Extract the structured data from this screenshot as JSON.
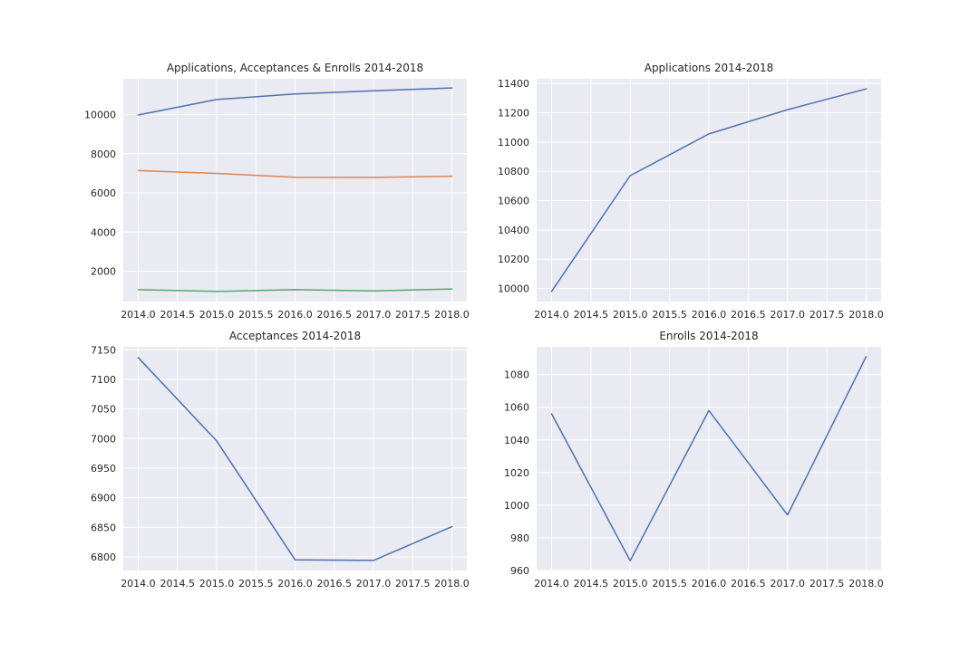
{
  "chart_data": [
    {
      "type": "line",
      "title": "Applications, Acceptances & Enrolls 2014-2018",
      "x": [
        2014,
        2015,
        2016,
        2017,
        2018
      ],
      "xlim": [
        2013.81,
        2018.19
      ],
      "ylim": [
        450,
        11830
      ],
      "xticks": [
        "2014.0",
        "2014.5",
        "2015.0",
        "2015.5",
        "2016.0",
        "2016.5",
        "2017.0",
        "2017.5",
        "2018.0"
      ],
      "yticks": [
        "2000",
        "4000",
        "6000",
        "8000",
        "10000"
      ],
      "grid": true,
      "series": [
        {
          "values": [
            9980,
            10770,
            11055,
            11220,
            11362
          ],
          "color": "#4c72b0"
        },
        {
          "values": [
            7137,
            6996,
            6795,
            6794,
            6851
          ],
          "color": "#dd8452"
        },
        {
          "values": [
            1056,
            966,
            1058,
            994,
            1091
          ],
          "color": "#55a868"
        }
      ]
    },
    {
      "type": "line",
      "title": "Applications 2014-2018",
      "x": [
        2014,
        2015,
        2016,
        2017,
        2018
      ],
      "xlim": [
        2013.81,
        2018.19
      ],
      "ylim": [
        9911,
        11431
      ],
      "xticks": [
        "2014.0",
        "2014.5",
        "2015.0",
        "2015.5",
        "2016.0",
        "2016.5",
        "2017.0",
        "2017.5",
        "2018.0"
      ],
      "yticks": [
        "10000",
        "10200",
        "10400",
        "10600",
        "10800",
        "11000",
        "11200",
        "11400"
      ],
      "grid": true,
      "series": [
        {
          "values": [
            9980,
            10770,
            11055,
            11220,
            11362
          ],
          "color": "#4c72b0"
        }
      ]
    },
    {
      "type": "line",
      "title": "Acceptances 2014-2018",
      "x": [
        2014,
        2015,
        2016,
        2017,
        2018
      ],
      "xlim": [
        2013.81,
        2018.19
      ],
      "ylim": [
        6777,
        7155
      ],
      "xticks": [
        "2014.0",
        "2014.5",
        "2015.0",
        "2015.5",
        "2016.0",
        "2016.5",
        "2017.0",
        "2017.5",
        "2018.0"
      ],
      "yticks": [
        "6800",
        "6850",
        "6900",
        "6950",
        "7000",
        "7050",
        "7100",
        "7150"
      ],
      "grid": true,
      "series": [
        {
          "values": [
            7137,
            6996,
            6795,
            6794,
            6851
          ],
          "color": "#4c72b0"
        }
      ]
    },
    {
      "type": "line",
      "title": "Enrolls 2014-2018",
      "x": [
        2014,
        2015,
        2016,
        2017,
        2018
      ],
      "xlim": [
        2013.81,
        2018.19
      ],
      "ylim": [
        960,
        1097
      ],
      "xticks": [
        "2014.0",
        "2014.5",
        "2015.0",
        "2015.5",
        "2016.0",
        "2016.5",
        "2017.0",
        "2017.5",
        "2018.0"
      ],
      "yticks": [
        "960",
        "980",
        "1000",
        "1020",
        "1040",
        "1060",
        "1080"
      ],
      "grid": true,
      "series": [
        {
          "values": [
            1056,
            966,
            1058,
            994,
            1091
          ],
          "color": "#4c72b0"
        }
      ]
    }
  ]
}
